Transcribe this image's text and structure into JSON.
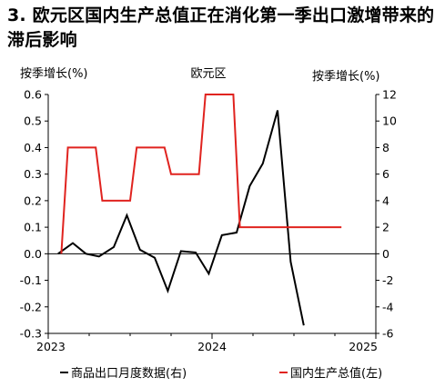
{
  "title": "3. 欧元区国内生产总值正在消化第一季出口激增带来的滞后影响",
  "chart_data": {
    "type": "line",
    "subtitle": "欧元区",
    "ylabel_left": "按季增长(%)",
    "ylabel_right": "按季增长(%)",
    "xlim": [
      2023.0,
      2025.0
    ],
    "ylim_left": [
      -0.3,
      0.6
    ],
    "ylim_right": [
      -6,
      12
    ],
    "yticks_left": [
      "0.6",
      "0.5",
      "0.4",
      "0.3",
      "0.2",
      "0.1",
      "0.0",
      "-0.1",
      "-0.2",
      "-0.3"
    ],
    "yticks_right": [
      "12",
      "10",
      "8",
      "6",
      "4",
      "2",
      "0",
      "-2",
      "-4",
      "-6"
    ],
    "xticks": [
      "2023",
      "2024",
      "2025"
    ],
    "series": [
      {
        "name": "商品出口月度数据(右)",
        "axis": "right",
        "color": "#000000",
        "x": [
          2023.06,
          2023.15,
          2023.23,
          2023.31,
          2023.4,
          2023.48,
          2023.56,
          2023.65,
          2023.73,
          2023.81,
          2023.9,
          2023.98,
          2024.06,
          2024.15,
          2024.23,
          2024.31,
          2024.4,
          2024.48,
          2024.56,
          2024.65,
          2024.73,
          2024.81
        ],
        "y": [
          0.0,
          0.8,
          0.0,
          -0.2,
          0.5,
          2.9,
          0.3,
          -0.3,
          -2.8,
          0.2,
          0.1,
          -1.5,
          1.4,
          1.6,
          5.1,
          6.8,
          10.8,
          -0.6,
          -5.4,
          null,
          null,
          null
        ]
      },
      {
        "name": "国内生产总值(左)",
        "axis": "left",
        "color": "#e0231f",
        "x": [
          2023.08,
          2023.12,
          2023.29,
          2023.33,
          2023.5,
          2023.54,
          2023.71,
          2023.75,
          2023.92,
          2023.96,
          2024.13,
          2024.17,
          2024.34,
          2024.38,
          2024.54,
          2024.58,
          2024.79
        ],
        "y": [
          0.0,
          0.4,
          0.4,
          0.2,
          0.2,
          0.4,
          0.4,
          0.3,
          0.3,
          0.6,
          0.6,
          0.1,
          0.1,
          0.1,
          0.1,
          0.1,
          0.1
        ]
      }
    ],
    "legend": [
      "商品出口月度数据(右)",
      "国内生产总值(左)"
    ],
    "legend_position": "bottom"
  }
}
